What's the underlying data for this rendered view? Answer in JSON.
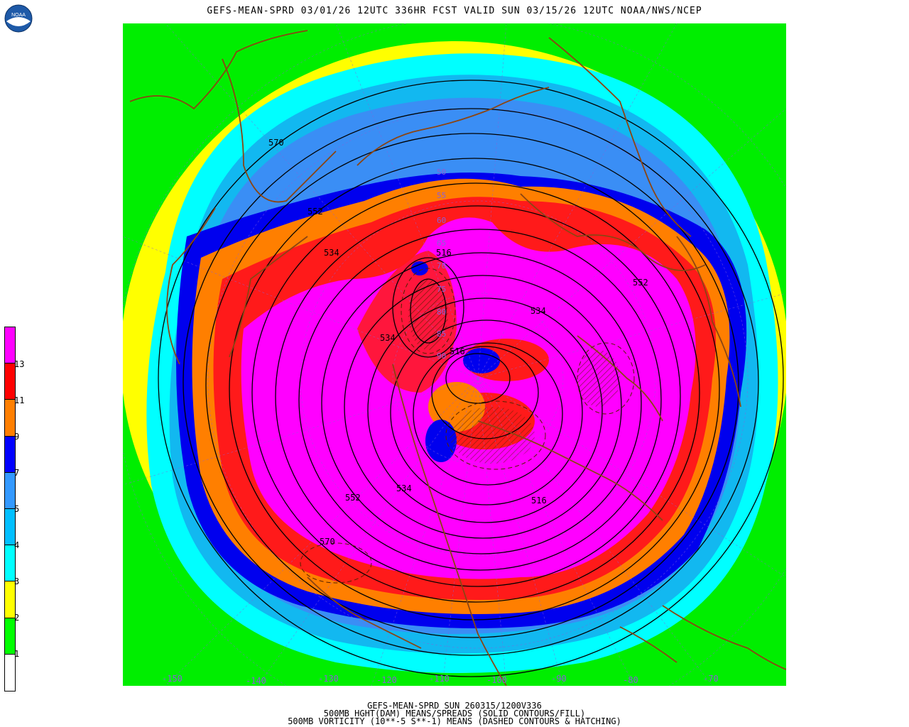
{
  "title": "GEFS-MEAN-SPRD 03/01/26 12UTC 336HR FCST VALID SUN 03/15/26 12UTC NOAA/NWS/NCEP",
  "logo_text": "NOAA",
  "footer": {
    "line1": "GEFS-MEAN-SPRD SUN 260315/1200V336",
    "line2": "500MB HGHT(DAM) MEANS/SPREADS (SOLID CONTOURS/FILL)",
    "line3": "500MB VORTICITY (10**-5 S**-1) MEANS (DASHED CONTOURS & HATCHING)"
  },
  "legend": {
    "labels": [
      "13",
      "11",
      "9",
      "7",
      "5",
      "4",
      "3",
      "2",
      "1"
    ],
    "colors": [
      "#ff00ff",
      "#ff0000",
      "#ff7f00",
      "#0000ff",
      "#3399ff",
      "#00bfff",
      "#00ffff",
      "#ffff00",
      "#00ff00",
      "#ffffff"
    ]
  },
  "longitudes": [
    "-150",
    "-140",
    "-130",
    "-120",
    "-110",
    "-100",
    "-90",
    "-80",
    "-70"
  ],
  "contour_labels": [
    "570",
    "552",
    "534",
    "552",
    "534",
    "516",
    "534",
    "552",
    "570",
    "516",
    "516",
    "534"
  ],
  "vorticity_labels": [
    "50",
    "55",
    "60",
    "65",
    "70",
    "75",
    "80",
    "85",
    "90"
  ],
  "colors": {
    "magenta": "#ff00ff",
    "red": "#ff1a1a",
    "orange": "#ff7f00",
    "blue": "#0000ee",
    "midblue": "#3a8ef5",
    "lightblue": "#12b8f0",
    "cyan": "#00ffff",
    "yellow": "#ffff00",
    "green": "#00ee00",
    "coast": "#8b4513",
    "lon_label": "#8a5fd8"
  }
}
